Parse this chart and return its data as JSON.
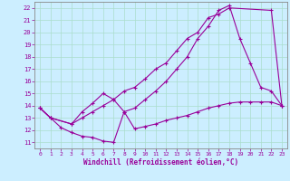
{
  "xlabel": "Windchill (Refroidissement éolien,°C)",
  "bg_color": "#cceeff",
  "grid_color": "#aaddcc",
  "line_color": "#990099",
  "xlim": [
    -0.5,
    23.5
  ],
  "ylim": [
    10.5,
    22.5
  ],
  "xticks": [
    0,
    1,
    2,
    3,
    4,
    5,
    6,
    7,
    8,
    9,
    10,
    11,
    12,
    13,
    14,
    15,
    16,
    17,
    18,
    19,
    20,
    21,
    22,
    23
  ],
  "yticks": [
    11,
    12,
    13,
    14,
    15,
    16,
    17,
    18,
    19,
    20,
    21,
    22
  ],
  "line1_x": [
    0,
    1,
    3,
    4,
    5,
    6,
    7,
    8,
    9,
    10,
    11,
    12,
    13,
    14,
    15,
    16,
    17,
    18,
    22,
    23
  ],
  "line1_y": [
    13.8,
    13.0,
    12.5,
    13.5,
    14.2,
    15.0,
    14.5,
    15.2,
    15.5,
    16.2,
    17.0,
    17.5,
    18.5,
    19.5,
    20.0,
    21.2,
    21.5,
    22.0,
    21.8,
    14.0
  ],
  "line2_x": [
    0,
    1,
    3,
    4,
    5,
    6,
    7,
    8,
    9,
    10,
    11,
    12,
    13,
    14,
    15,
    16,
    17,
    18,
    19,
    20,
    21,
    22,
    23
  ],
  "line2_y": [
    13.8,
    13.0,
    12.5,
    13.0,
    13.5,
    14.0,
    14.5,
    13.5,
    13.8,
    14.5,
    15.2,
    16.0,
    17.0,
    18.0,
    19.5,
    20.5,
    21.8,
    22.2,
    19.5,
    17.5,
    15.5,
    15.2,
    14.0
  ],
  "line3_x": [
    0,
    1,
    2,
    3,
    4,
    5,
    6,
    7,
    8,
    9,
    10,
    11,
    12,
    13,
    14,
    15,
    16,
    17,
    18,
    19,
    20,
    21,
    22,
    23
  ],
  "line3_y": [
    13.8,
    13.0,
    12.2,
    11.8,
    11.5,
    11.4,
    11.1,
    11.0,
    13.5,
    12.1,
    12.3,
    12.5,
    12.8,
    13.0,
    13.2,
    13.5,
    13.8,
    14.0,
    14.2,
    14.3,
    14.3,
    14.3,
    14.3,
    14.0
  ]
}
